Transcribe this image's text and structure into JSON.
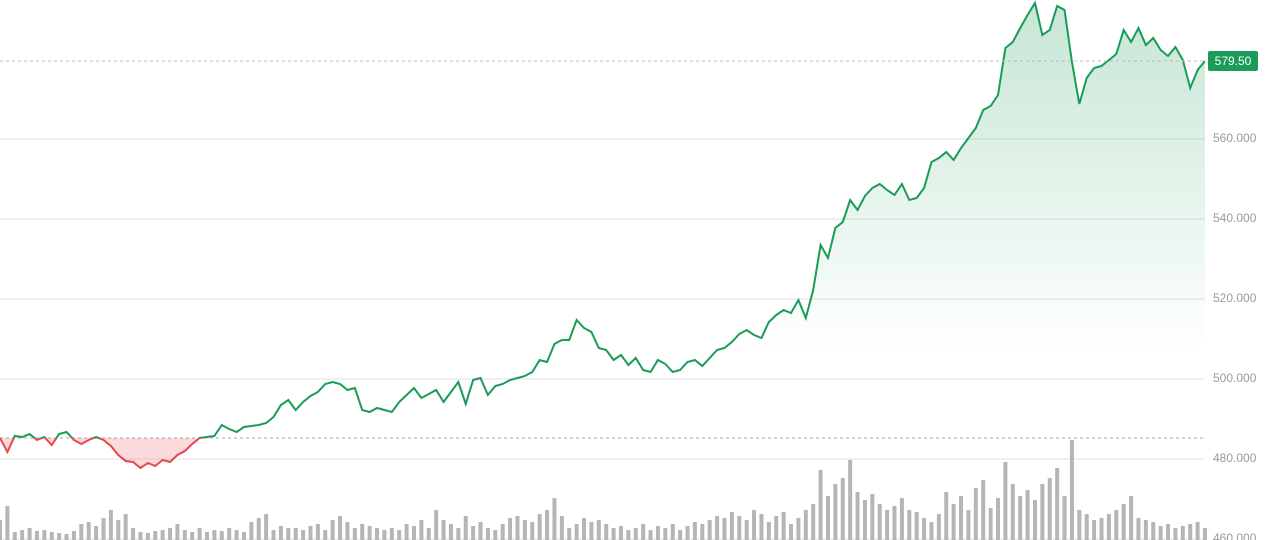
{
  "chart_data": {
    "type": "line",
    "values": [
      485.25,
      481.75,
      485.75,
      485.5,
      486.25,
      484.75,
      485.5,
      483.5,
      486.25,
      486.75,
      484.75,
      483.75,
      484.75,
      485.5,
      484.75,
      483.25,
      481,
      479.5,
      479.25,
      477.75,
      479,
      478.25,
      479.75,
      479.25,
      481,
      482,
      483.75,
      485.25,
      485.5,
      485.75,
      488.5,
      487.5,
      486.75,
      488,
      488.25,
      488.5,
      489,
      490.5,
      493.5,
      494.75,
      492.25,
      494.25,
      495.75,
      496.75,
      498.75,
      499.25,
      498.75,
      497.25,
      497.75,
      492.25,
      491.75,
      492.75,
      492.25,
      491.75,
      494.25,
      496,
      497.75,
      495.25,
      496.25,
      497.25,
      494.25,
      496.75,
      499.25,
      493.75,
      499.75,
      500.25,
      496,
      498.25,
      498.75,
      499.75,
      500.25,
      500.75,
      501.75,
      504.75,
      504.25,
      508.75,
      509.75,
      509.75,
      514.75,
      512.75,
      511.75,
      507.75,
      507.25,
      504.75,
      506,
      503.5,
      505.25,
      502.25,
      501.75,
      504.75,
      503.75,
      501.75,
      502.25,
      504.25,
      504.75,
      503.25,
      505.25,
      507.25,
      507.75,
      509.25,
      511.25,
      512.25,
      511,
      510.25,
      514.25,
      516,
      517.25,
      516.5,
      519.75,
      515.25,
      522.25,
      533.5,
      530.25,
      537.75,
      539.25,
      544.75,
      542.25,
      545.75,
      547.75,
      548.75,
      547.25,
      546,
      548.75,
      544.75,
      545.25,
      547.75,
      554.25,
      555.25,
      556.75,
      554.75,
      557.75,
      560.25,
      562.75,
      567.25,
      568.25,
      571,
      582.75,
      584.25,
      587.75,
      591,
      594,
      586,
      587.25,
      593.25,
      592.25,
      579.25,
      568.75,
      575.25,
      577.75,
      578.25,
      579.75,
      581.25,
      587.25,
      584.25,
      587.75,
      583.5,
      585.25,
      582.25,
      580.75,
      583,
      579.75,
      572.75,
      577.25,
      579.5
    ],
    "volume": [
      20,
      34,
      8,
      10,
      12,
      9,
      10,
      8,
      7,
      6,
      9,
      16,
      18,
      14,
      22,
      30,
      20,
      26,
      12,
      8,
      7,
      9,
      10,
      12,
      16,
      10,
      8,
      12,
      8,
      10,
      9,
      12,
      10,
      8,
      18,
      22,
      26,
      10,
      14,
      12,
      12,
      10,
      14,
      16,
      10,
      20,
      24,
      18,
      12,
      16,
      14,
      12,
      10,
      12,
      10,
      16,
      14,
      20,
      12,
      30,
      20,
      16,
      12,
      24,
      14,
      18,
      12,
      10,
      16,
      22,
      24,
      20,
      18,
      26,
      30,
      42,
      24,
      12,
      16,
      22,
      18,
      20,
      16,
      12,
      14,
      10,
      12,
      16,
      10,
      14,
      12,
      16,
      10,
      14,
      18,
      16,
      20,
      24,
      22,
      28,
      24,
      20,
      30,
      26,
      18,
      24,
      28,
      16,
      22,
      30,
      36,
      70,
      44,
      56,
      62,
      80,
      48,
      40,
      46,
      36,
      30,
      34,
      42,
      30,
      28,
      22,
      18,
      26,
      48,
      36,
      44,
      30,
      52,
      60,
      32,
      42,
      78,
      56,
      44,
      50,
      40,
      56,
      62,
      72,
      44,
      100,
      30,
      26,
      20,
      22,
      26,
      30,
      36,
      44,
      22,
      20,
      18,
      14,
      16,
      12,
      14,
      16,
      18,
      12
    ],
    "ylim": [
      459.75,
      594.75
    ],
    "yticks": [
      {
        "value": 460,
        "label": "460.000"
      },
      {
        "value": 480,
        "label": "480.000"
      },
      {
        "value": 500,
        "label": "500.000"
      },
      {
        "value": 520,
        "label": "520.000"
      },
      {
        "value": 540,
        "label": "540.000"
      },
      {
        "value": 560,
        "label": "560.000"
      }
    ],
    "y2lim": [
      0,
      540
    ],
    "baseline": 485.25,
    "current_price": {
      "value": 579.5,
      "label": "579.50"
    },
    "up_color": "#1a9b56",
    "down_color": "#e5484d",
    "volume_color": "#b5b5b5",
    "grid": true
  }
}
